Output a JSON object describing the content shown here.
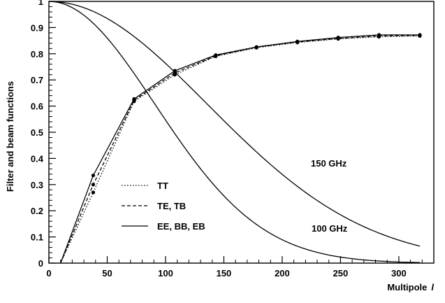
{
  "chart_data": {
    "type": "line",
    "title": "",
    "xlabel": "Multipole",
    "xlabel_symbol": "l",
    "ylabel": "Filter and beam functions",
    "xlim": [
      0,
      330
    ],
    "ylim": [
      0,
      1
    ],
    "x_ticks": [
      0,
      50,
      100,
      150,
      200,
      250,
      300
    ],
    "x_tick_labels": [
      "0",
      "50",
      "100",
      "150",
      "200",
      "250",
      "300"
    ],
    "y_ticks": [
      0,
      0.1,
      0.2,
      0.3,
      0.4,
      0.5,
      0.6,
      0.7,
      0.8,
      0.9,
      1
    ],
    "y_tick_labels": [
      "0",
      "0.1",
      "0.2",
      "0.3",
      "0.4",
      "0.5",
      "0.6",
      "0.7",
      "0.8",
      "0.9",
      "1"
    ],
    "grid": false,
    "legend": {
      "placement": "left-middle",
      "entries": [
        "TT",
        "TE, TB",
        "EE, BB, EB"
      ]
    },
    "series": [
      {
        "name": "TT",
        "style": "dotted",
        "x": [
          10,
          38,
          73,
          108,
          143,
          178,
          213,
          248,
          283,
          318
        ],
        "y": [
          0.0,
          0.27,
          0.618,
          0.72,
          0.79,
          0.823,
          0.843,
          0.857,
          0.865,
          0.868
        ]
      },
      {
        "name": "TE, TB",
        "style": "dashed",
        "x": [
          10,
          38,
          73,
          108,
          143,
          178,
          213,
          248,
          283,
          318
        ],
        "y": [
          0.0,
          0.3,
          0.622,
          0.727,
          0.792,
          0.825,
          0.845,
          0.858,
          0.868,
          0.87
        ]
      },
      {
        "name": "EE, BB, EB",
        "style": "solid",
        "x": [
          10,
          38,
          73,
          108,
          143,
          178,
          213,
          248,
          283,
          318
        ],
        "y": [
          0.0,
          0.335,
          0.627,
          0.735,
          0.795,
          0.826,
          0.847,
          0.862,
          0.872,
          0.872
        ]
      }
    ],
    "beam_curves": [
      {
        "label": "150 GHz",
        "sigma": 136,
        "label_at": [
          150,
          0.385
        ]
      },
      {
        "label": "100 GHz",
        "sigma": 91,
        "label_at": [
          100,
          0.1
        ]
      }
    ],
    "beam_x_range": [
      0,
      318
    ]
  }
}
